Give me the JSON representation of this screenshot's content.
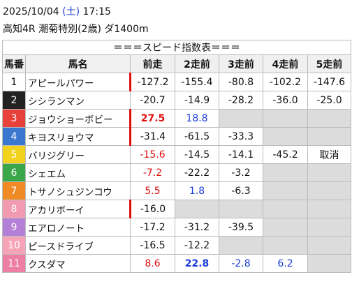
{
  "header": {
    "date": "2025/10/04",
    "weekday": "(土)",
    "time": "17:15",
    "race": "高知4R 潮菊特別(2歳) ダ1400m"
  },
  "table": {
    "title": "＝＝＝スピード指数表＝＝＝",
    "columns": [
      "馬番",
      "馬名",
      "前走",
      "2走前",
      "3走前",
      "4走前",
      "5走前"
    ],
    "rows": [
      {
        "number": 1,
        "color": "#ffffff",
        "name": "アピールパワー",
        "values": [
          "-127.2",
          "-155.4",
          "-80.8",
          "-102.2",
          "-147.6"
        ]
      },
      {
        "number": 2,
        "color": "#222222",
        "name": "シシランマン",
        "values": [
          "-20.7",
          "-14.9",
          "-28.2",
          "-36.0",
          "-25.0"
        ]
      },
      {
        "number": 3,
        "color": "#e8413c",
        "name": "ジョウショーボビー",
        "values": [
          "27.5",
          "18.8",
          null,
          null,
          null
        ]
      },
      {
        "number": 4,
        "color": "#3a78d0",
        "name": "キヨスリョウマ",
        "values": [
          "-31.4",
          "-61.5",
          "-33.3",
          null,
          null
        ]
      },
      {
        "number": 5,
        "color": "#f2d21d",
        "name": "バリジグリー",
        "values": [
          "-15.6",
          "-14.5",
          "-14.1",
          "-45.2",
          "取消"
        ]
      },
      {
        "number": 6,
        "color": "#3aa64a",
        "name": "シェエム",
        "values": [
          "-7.2",
          "-22.2",
          "-3.2",
          null,
          null
        ]
      },
      {
        "number": 7,
        "color": "#f08a24",
        "name": "トサノシュジンコウ",
        "values": [
          "5.5",
          "1.8",
          "-6.3",
          null,
          null
        ]
      },
      {
        "number": 8,
        "color": "#f29bb0",
        "name": "アカリボーイ",
        "values": [
          "-16.0",
          null,
          null,
          null,
          null
        ]
      },
      {
        "number": 9,
        "color": "#b47fd6",
        "name": "エアロノート",
        "values": [
          "-17.2",
          "-31.2",
          "-39.5",
          null,
          null
        ]
      },
      {
        "number": 10,
        "color": "#f6a5b8",
        "name": "ピースドライブ",
        "values": [
          "-16.5",
          "-12.2",
          null,
          null,
          null
        ]
      },
      {
        "number": 11,
        "color": "#ee7fa4",
        "name": "クスダマ",
        "values": [
          "8.6",
          "22.8",
          "-2.8",
          "6.2",
          null
        ]
      }
    ]
  }
}
